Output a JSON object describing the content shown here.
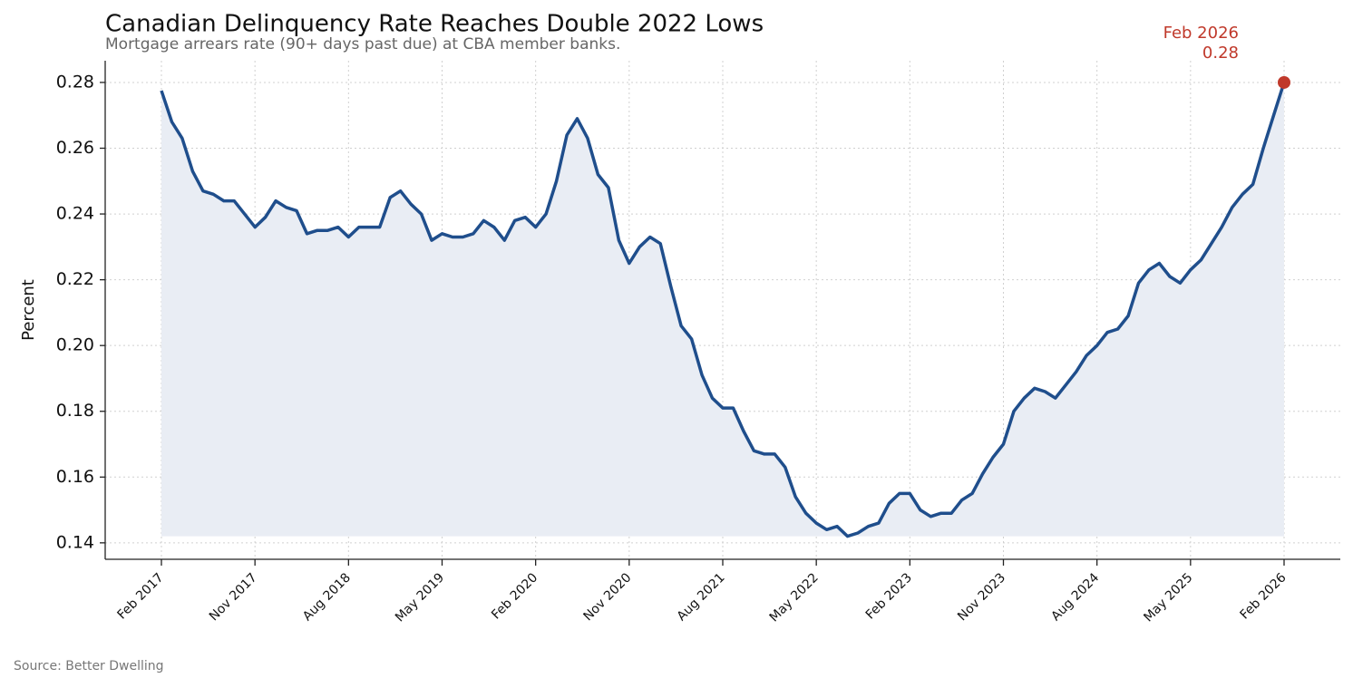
{
  "chart_data": {
    "type": "line",
    "title": "Canadian Delinquency Rate Reaches Double 2022 Lows",
    "subtitle": "Mortgage arrears rate (90+ days past due) at CBA member banks.",
    "y_label": "Percent",
    "source": "Source: Better Dwelling",
    "color": "#1f4e8c",
    "fill_color": "#e9edf4",
    "grid": true,
    "x": [
      "2017-02",
      "2017-03",
      "2017-04",
      "2017-05",
      "2017-06",
      "2017-07",
      "2017-08",
      "2017-09",
      "2017-10",
      "2017-11",
      "2017-12",
      "2018-01",
      "2018-02",
      "2018-03",
      "2018-04",
      "2018-05",
      "2018-06",
      "2018-07",
      "2018-08",
      "2018-09",
      "2018-10",
      "2018-11",
      "2018-12",
      "2019-01",
      "2019-02",
      "2019-03",
      "2019-04",
      "2019-05",
      "2019-06",
      "2019-07",
      "2019-08",
      "2019-09",
      "2019-10",
      "2019-11",
      "2019-12",
      "2020-01",
      "2020-02",
      "2020-03",
      "2020-04",
      "2020-05",
      "2020-06",
      "2020-07",
      "2020-08",
      "2020-09",
      "2020-10",
      "2020-11",
      "2020-12",
      "2021-01",
      "2021-02",
      "2021-03",
      "2021-04",
      "2021-05",
      "2021-06",
      "2021-07",
      "2021-08",
      "2021-09",
      "2021-10",
      "2021-11",
      "2021-12",
      "2022-01",
      "2022-02",
      "2022-03",
      "2022-04",
      "2022-05",
      "2022-06",
      "2022-07",
      "2022-08",
      "2022-09",
      "2022-10",
      "2022-11",
      "2022-12",
      "2023-01",
      "2023-02",
      "2023-03",
      "2023-04",
      "2023-05",
      "2023-06",
      "2023-07",
      "2023-08",
      "2023-09",
      "2023-10",
      "2023-11",
      "2023-12",
      "2024-01",
      "2024-02",
      "2024-03",
      "2024-04",
      "2024-05",
      "2024-06",
      "2024-07",
      "2024-08",
      "2024-09",
      "2024-10",
      "2024-11",
      "2024-12",
      "2025-01",
      "2025-02",
      "2025-03",
      "2025-04",
      "2025-05",
      "2025-06",
      "2025-07",
      "2025-08",
      "2025-09",
      "2025-10",
      "2025-11",
      "2025-12",
      "2026-01",
      "2026-02"
    ],
    "values": [
      0.2775,
      0.268,
      0.263,
      0.253,
      0.247,
      0.246,
      0.244,
      0.244,
      0.24,
      0.236,
      0.239,
      0.244,
      0.242,
      0.241,
      0.234,
      0.235,
      0.235,
      0.236,
      0.233,
      0.236,
      0.236,
      0.236,
      0.245,
      0.247,
      0.243,
      0.24,
      0.232,
      0.234,
      0.233,
      0.233,
      0.234,
      0.238,
      0.236,
      0.232,
      0.238,
      0.239,
      0.236,
      0.24,
      0.25,
      0.264,
      0.269,
      0.263,
      0.252,
      0.248,
      0.232,
      0.225,
      0.23,
      0.233,
      0.231,
      0.218,
      0.206,
      0.202,
      0.191,
      0.184,
      0.181,
      0.181,
      0.174,
      0.168,
      0.167,
      0.167,
      0.163,
      0.154,
      0.149,
      0.146,
      0.144,
      0.145,
      0.142,
      0.143,
      0.145,
      0.146,
      0.152,
      0.155,
      0.155,
      0.15,
      0.148,
      0.149,
      0.149,
      0.153,
      0.155,
      0.161,
      0.166,
      0.17,
      0.18,
      0.184,
      0.187,
      0.186,
      0.184,
      0.188,
      0.192,
      0.197,
      0.2,
      0.204,
      0.205,
      0.209,
      0.219,
      0.223,
      0.225,
      0.221,
      0.219,
      0.223,
      0.226,
      0.231,
      0.236,
      0.242,
      0.246,
      0.249,
      0.26,
      0.27,
      0.28
    ],
    "ylim": [
      0.135,
      0.2866
    ],
    "yticks": [
      0.14,
      0.16,
      0.18,
      {
        "value": 0.2,
        "label": "0.20"
      },
      0.22,
      0.24,
      0.26,
      0.28
    ],
    "xticks": [
      {
        "value": "2017-02",
        "label": "Feb 2017"
      },
      {
        "value": "2017-11",
        "label": "Nov 2017"
      },
      {
        "value": "2018-08",
        "label": "Aug 2018"
      },
      {
        "value": "2019-05",
        "label": "May 2019"
      },
      {
        "value": "2020-02",
        "label": "Feb 2020"
      },
      {
        "value": "2020-11",
        "label": "Nov 2020"
      },
      {
        "value": "2021-08",
        "label": "Aug 2021"
      },
      {
        "value": "2022-05",
        "label": "May 2022"
      },
      {
        "value": "2023-02",
        "label": "Feb 2023"
      },
      {
        "value": "2023-11",
        "label": "Nov 2023"
      },
      {
        "value": "2024-08",
        "label": "Aug 2024"
      },
      {
        "value": "2025-05",
        "label": "May 2025"
      },
      {
        "value": "2026-02",
        "label": "Feb 2026"
      }
    ],
    "annotation": {
      "x": "2026-02",
      "x_label": "Feb 2026",
      "value": 0.28,
      "color": "#c0392b"
    }
  }
}
